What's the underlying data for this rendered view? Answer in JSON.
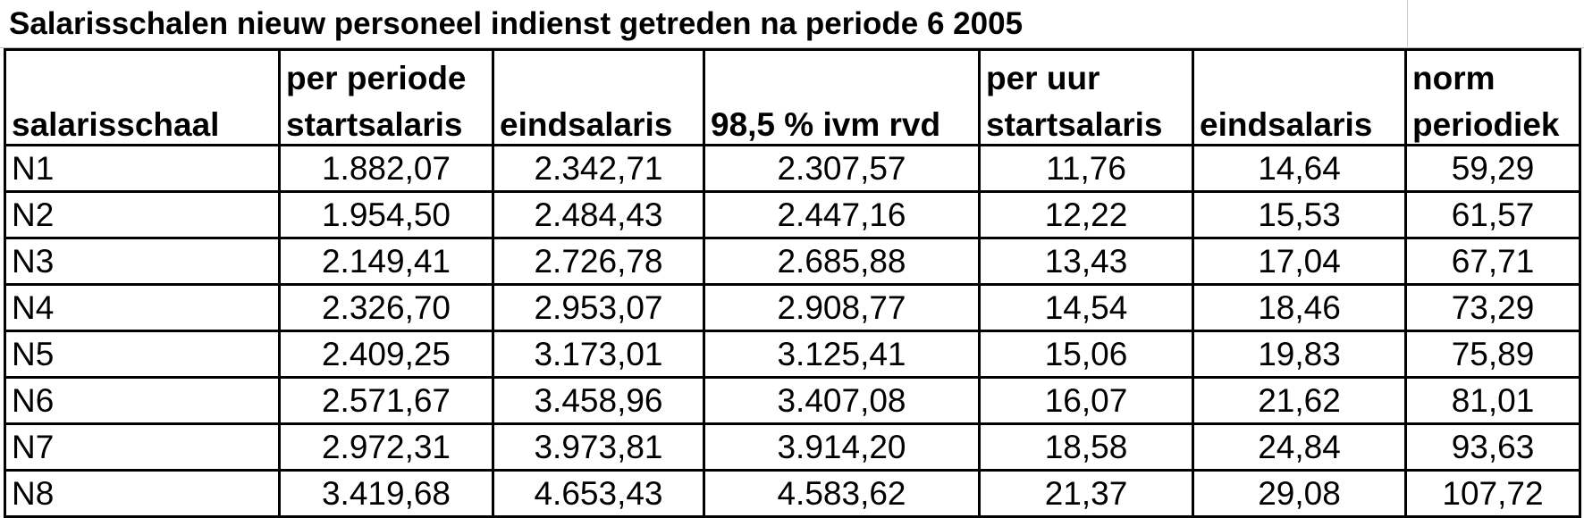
{
  "title": "Salarisschalen nieuw personeel indienst getreden na periode 6 2005",
  "header": {
    "groups": {
      "per_periode": "per periode",
      "per_uur": "per uur",
      "norm": "norm"
    },
    "columns": [
      "salarisschaal",
      "startsalaris",
      "eindsalaris",
      "98,5 % ivm rvd",
      "startsalaris",
      "eindsalaris",
      "periodiek"
    ]
  },
  "table": {
    "rows": [
      [
        "N1",
        "1.882,07",
        "2.342,71",
        "2.307,57",
        "11,76",
        "14,64",
        "59,29"
      ],
      [
        "N2",
        "1.954,50",
        "2.484,43",
        "2.447,16",
        "12,22",
        "15,53",
        "61,57"
      ],
      [
        "N3",
        "2.149,41",
        "2.726,78",
        "2.685,88",
        "13,43",
        "17,04",
        "67,71"
      ],
      [
        "N4",
        "2.326,70",
        "2.953,07",
        "2.908,77",
        "14,54",
        "18,46",
        "73,29"
      ],
      [
        "N5",
        "2.409,25",
        "3.173,01",
        "3.125,41",
        "15,06",
        "19,83",
        "75,89"
      ],
      [
        "N6",
        "2.571,67",
        "3.458,96",
        "3.407,08",
        "16,07",
        "21,62",
        "81,01"
      ],
      [
        "N7",
        "2.972,31",
        "3.973,81",
        "3.914,20",
        "18,58",
        "24,84",
        "93,63"
      ],
      [
        "N8",
        "3.419,68",
        "4.653,43",
        "4.583,62",
        "21,37",
        "29,08",
        "107,72"
      ]
    ]
  }
}
